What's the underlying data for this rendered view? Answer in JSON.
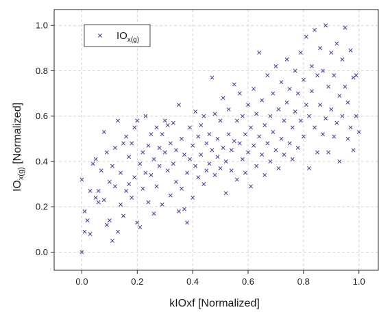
{
  "chart_data": {
    "type": "scatter",
    "xlabel": "kIOxf [Normalized]",
    "ylabel": {
      "base": "IO",
      "sub": "x(g)",
      "suffix": " [Normalized]"
    },
    "legend": {
      "base": "IO",
      "sub": "x(g)",
      "placement": "top-left"
    },
    "xlim": [
      -0.1,
      1.07
    ],
    "ylim": [
      -0.08,
      1.07
    ],
    "xticks": [
      0.0,
      0.2,
      0.4,
      0.6,
      0.8,
      1.0
    ],
    "yticks": [
      0.0,
      0.2,
      0.4,
      0.6,
      0.8,
      1.0
    ],
    "tick_labels_x": [
      "0.0",
      "0.2",
      "0.4",
      "0.6",
      "0.8",
      "1.0"
    ],
    "tick_labels_y": [
      "0.0",
      "0.2",
      "0.4",
      "0.6",
      "0.8",
      "1.0"
    ],
    "grid": true,
    "marker_color": "#3a3a9a",
    "series": [
      {
        "points": [
          [
            0.0,
            0.0
          ],
          [
            0.0,
            0.32
          ],
          [
            0.01,
            0.09
          ],
          [
            0.01,
            0.18
          ],
          [
            0.02,
            0.14
          ],
          [
            0.03,
            0.27
          ],
          [
            0.03,
            0.08
          ],
          [
            0.04,
            0.39
          ],
          [
            0.05,
            0.24
          ],
          [
            0.05,
            0.41
          ],
          [
            0.06,
            0.27
          ],
          [
            0.06,
            0.22
          ],
          [
            0.07,
            0.36
          ],
          [
            0.08,
            0.23
          ],
          [
            0.08,
            0.53
          ],
          [
            0.09,
            0.12
          ],
          [
            0.09,
            0.44
          ],
          [
            0.1,
            0.31
          ],
          [
            0.1,
            0.14
          ],
          [
            0.11,
            0.38
          ],
          [
            0.11,
            0.05
          ],
          [
            0.12,
            0.29
          ],
          [
            0.12,
            0.46
          ],
          [
            0.13,
            0.09
          ],
          [
            0.13,
            0.58
          ],
          [
            0.14,
            0.21
          ],
          [
            0.14,
            0.35
          ],
          [
            0.15,
            0.48
          ],
          [
            0.15,
            0.16
          ],
          [
            0.16,
            0.27
          ],
          [
            0.16,
            0.51
          ],
          [
            0.17,
            0.3
          ],
          [
            0.17,
            0.42
          ],
          [
            0.18,
            0.24
          ],
          [
            0.18,
            0.48
          ],
          [
            0.19,
            0.55
          ],
          [
            0.19,
            0.33
          ],
          [
            0.2,
            0.58
          ],
          [
            0.2,
            0.13
          ],
          [
            0.21,
            0.39
          ],
          [
            0.21,
            0.11
          ],
          [
            0.22,
            0.44
          ],
          [
            0.22,
            0.28
          ],
          [
            0.23,
            0.35
          ],
          [
            0.23,
            0.6
          ],
          [
            0.24,
            0.22
          ],
          [
            0.24,
            0.47
          ],
          [
            0.25,
            0.52
          ],
          [
            0.25,
            0.34
          ],
          [
            0.26,
            0.41
          ],
          [
            0.26,
            0.17
          ],
          [
            0.27,
            0.55
          ],
          [
            0.27,
            0.29
          ],
          [
            0.28,
            0.46
          ],
          [
            0.28,
            0.38
          ],
          [
            0.29,
            0.52
          ],
          [
            0.29,
            0.21
          ],
          [
            0.3,
            0.58
          ],
          [
            0.3,
            0.44
          ],
          [
            0.31,
            0.36
          ],
          [
            0.31,
            0.56
          ],
          [
            0.32,
            0.25
          ],
          [
            0.32,
            0.48
          ],
          [
            0.33,
            0.57
          ],
          [
            0.33,
            0.39
          ],
          [
            0.34,
            0.31
          ],
          [
            0.34,
            0.45
          ],
          [
            0.35,
            0.65
          ],
          [
            0.35,
            0.18
          ],
          [
            0.36,
            0.5
          ],
          [
            0.36,
            0.28
          ],
          [
            0.37,
            0.43
          ],
          [
            0.37,
            0.19
          ],
          [
            0.38,
            0.35
          ],
          [
            0.38,
            0.13
          ],
          [
            0.39,
            0.55
          ],
          [
            0.39,
            0.41
          ],
          [
            0.4,
            0.47
          ],
          [
            0.4,
            0.24
          ],
          [
            0.41,
            0.62
          ],
          [
            0.41,
            0.38
          ],
          [
            0.42,
            0.51
          ],
          [
            0.42,
            0.33
          ],
          [
            0.43,
            0.56
          ],
          [
            0.43,
            0.43
          ],
          [
            0.44,
            0.3
          ],
          [
            0.44,
            0.6
          ],
          [
            0.45,
            0.48
          ],
          [
            0.45,
            0.36
          ],
          [
            0.46,
            0.52
          ],
          [
            0.46,
            0.39
          ],
          [
            0.47,
            0.77
          ],
          [
            0.47,
            0.45
          ],
          [
            0.48,
            0.34
          ],
          [
            0.48,
            0.61
          ],
          [
            0.49,
            0.5
          ],
          [
            0.49,
            0.42
          ],
          [
            0.5,
            0.58
          ],
          [
            0.5,
            0.37
          ],
          [
            0.51,
            0.46
          ],
          [
            0.51,
            0.68
          ],
          [
            0.52,
            0.4
          ],
          [
            0.52,
            0.26
          ],
          [
            0.53,
            0.52
          ],
          [
            0.53,
            0.63
          ],
          [
            0.54,
            0.45
          ],
          [
            0.54,
            0.36
          ],
          [
            0.55,
            0.74
          ],
          [
            0.55,
            0.49
          ],
          [
            0.56,
            0.58
          ],
          [
            0.56,
            0.32
          ],
          [
            0.57,
            0.48
          ],
          [
            0.57,
            0.7
          ],
          [
            0.58,
            0.41
          ],
          [
            0.58,
            0.6
          ],
          [
            0.59,
            0.35
          ],
          [
            0.59,
            0.52
          ],
          [
            0.6,
            0.65
          ],
          [
            0.6,
            0.44
          ],
          [
            0.61,
            0.55
          ],
          [
            0.61,
            0.29
          ],
          [
            0.62,
            0.72
          ],
          [
            0.62,
            0.47
          ],
          [
            0.63,
            0.38
          ],
          [
            0.63,
            0.61
          ],
          [
            0.64,
            0.88
          ],
          [
            0.64,
            0.51
          ],
          [
            0.65,
            0.43
          ],
          [
            0.65,
            0.67
          ],
          [
            0.66,
            0.56
          ],
          [
            0.66,
            0.34
          ],
          [
            0.67,
            0.78
          ],
          [
            0.67,
            0.48
          ],
          [
            0.68,
            0.6
          ],
          [
            0.68,
            0.4
          ],
          [
            0.69,
            0.7
          ],
          [
            0.69,
            0.53
          ],
          [
            0.7,
            0.82
          ],
          [
            0.7,
            0.45
          ],
          [
            0.71,
            0.63
          ],
          [
            0.71,
            0.37
          ],
          [
            0.72,
            0.75
          ],
          [
            0.72,
            0.5
          ],
          [
            0.73,
            0.58
          ],
          [
            0.73,
            0.43
          ],
          [
            0.74,
            0.85
          ],
          [
            0.74,
            0.66
          ],
          [
            0.75,
            0.48
          ],
          [
            0.75,
            0.72
          ],
          [
            0.76,
            0.55
          ],
          [
            0.76,
            0.41
          ],
          [
            0.77,
            0.8
          ],
          [
            0.77,
            0.62
          ],
          [
            0.78,
            0.7
          ],
          [
            0.78,
            0.46
          ],
          [
            0.79,
            0.88
          ],
          [
            0.79,
            0.58
          ],
          [
            0.8,
            0.76
          ],
          [
            0.8,
            0.51
          ],
          [
            0.81,
            0.65
          ],
          [
            0.81,
            0.95
          ],
          [
            0.82,
            0.6
          ],
          [
            0.82,
            0.37
          ],
          [
            0.83,
            0.82
          ],
          [
            0.83,
            0.71
          ],
          [
            0.84,
            0.55
          ],
          [
            0.84,
            0.98
          ],
          [
            0.85,
            0.78
          ],
          [
            0.85,
            0.44
          ],
          [
            0.86,
            0.9
          ],
          [
            0.86,
            0.65
          ],
          [
            0.87,
            0.52
          ],
          [
            0.87,
            0.8
          ],
          [
            0.88,
            1.0
          ],
          [
            0.88,
            0.59
          ],
          [
            0.89,
            0.73
          ],
          [
            0.89,
            0.44
          ],
          [
            0.9,
            0.88
          ],
          [
            0.9,
            0.63
          ],
          [
            0.91,
            0.51
          ],
          [
            0.91,
            0.78
          ],
          [
            0.92,
            0.92
          ],
          [
            0.92,
            0.57
          ],
          [
            0.93,
            0.69
          ],
          [
            0.93,
            0.4
          ],
          [
            0.94,
            0.85
          ],
          [
            0.94,
            0.6
          ],
          [
            0.95,
            0.73
          ],
          [
            0.95,
            0.99
          ],
          [
            0.96,
            0.5
          ],
          [
            0.96,
            0.66
          ],
          [
            0.97,
            0.89
          ],
          [
            0.97,
            0.55
          ],
          [
            0.98,
            0.77
          ],
          [
            0.98,
            0.45
          ],
          [
            0.99,
            0.6
          ],
          [
            0.99,
            0.78
          ],
          [
            1.0,
            0.53
          ]
        ]
      }
    ]
  }
}
